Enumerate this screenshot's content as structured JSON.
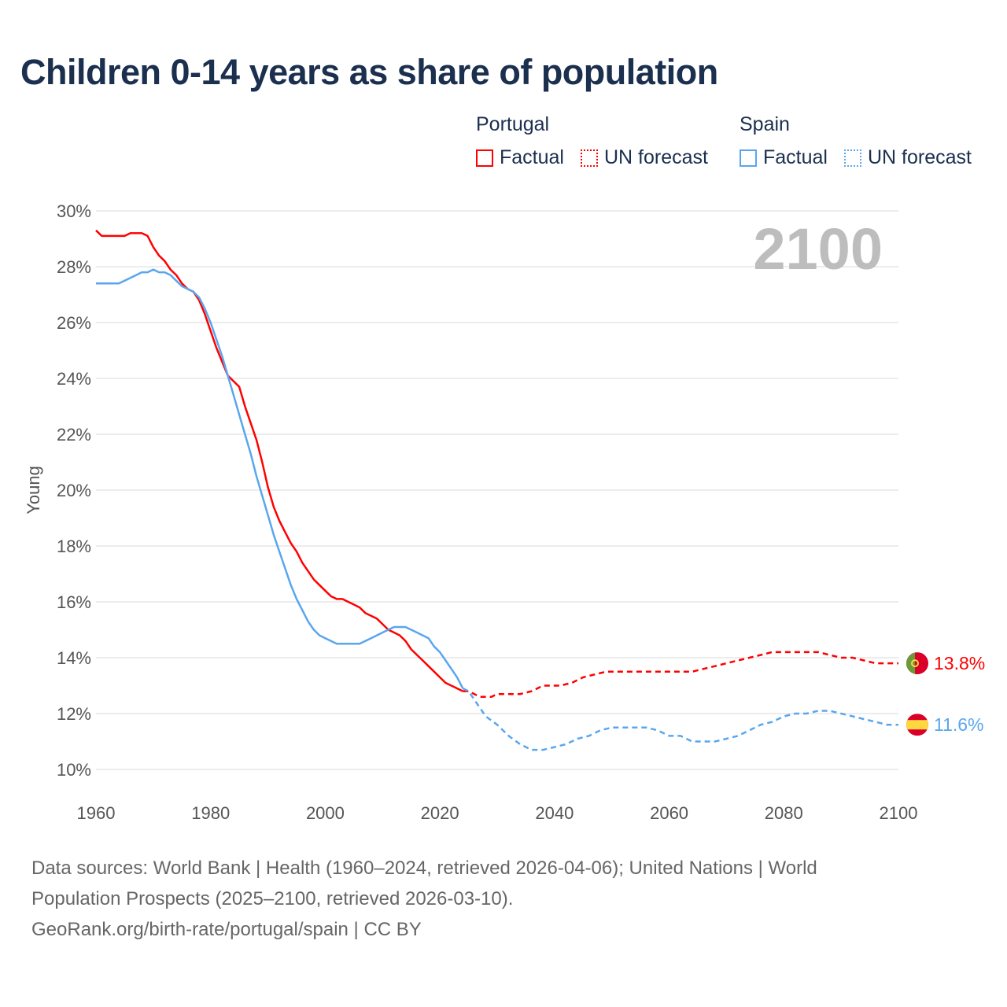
{
  "chart_data": {
    "type": "line",
    "title": "Children 0-14 years as share of population",
    "ylabel": "Young",
    "xlabel": "",
    "xlim": [
      1960,
      2100
    ],
    "ylim": [
      10,
      30
    ],
    "x_ticks": [
      "1960",
      "1980",
      "2000",
      "2020",
      "2040",
      "2060",
      "2080",
      "2100"
    ],
    "y_ticks": [
      "10%",
      "12%",
      "14%",
      "16%",
      "18%",
      "20%",
      "22%",
      "24%",
      "26%",
      "28%",
      "30%"
    ],
    "grid": true,
    "year_watermark": "2100",
    "legend": {
      "placement": "top-right",
      "groups": [
        {
          "country": "Portugal",
          "items": [
            "Factual",
            "UN forecast"
          ]
        },
        {
          "country": "Spain",
          "items": [
            "Factual",
            "UN forecast"
          ]
        }
      ]
    },
    "series": [
      {
        "name": "Portugal",
        "color": "#ff0000",
        "end_label": "13.8%",
        "factual": [
          [
            1960,
            29.3
          ],
          [
            1961,
            29.1
          ],
          [
            1965,
            29.1
          ],
          [
            1966,
            29.2
          ],
          [
            1968,
            29.2
          ],
          [
            1969,
            29.1
          ],
          [
            1970,
            28.7
          ],
          [
            1971,
            28.4
          ],
          [
            1972,
            28.2
          ],
          [
            1973,
            27.9
          ],
          [
            1974,
            27.7
          ],
          [
            1975,
            27.4
          ],
          [
            1976,
            27.2
          ],
          [
            1977,
            27.1
          ],
          [
            1978,
            26.8
          ],
          [
            1979,
            26.3
          ],
          [
            1980,
            25.7
          ],
          [
            1981,
            25.1
          ],
          [
            1982,
            24.6
          ],
          [
            1983,
            24.1
          ],
          [
            1985,
            23.7
          ],
          [
            1986,
            23.0
          ],
          [
            1987,
            22.4
          ],
          [
            1988,
            21.8
          ],
          [
            1989,
            21.0
          ],
          [
            1990,
            20.1
          ],
          [
            1991,
            19.4
          ],
          [
            1992,
            18.9
          ],
          [
            1993,
            18.5
          ],
          [
            1994,
            18.1
          ],
          [
            1995,
            17.8
          ],
          [
            1996,
            17.4
          ],
          [
            1997,
            17.1
          ],
          [
            1998,
            16.8
          ],
          [
            1999,
            16.6
          ],
          [
            2000,
            16.4
          ],
          [
            2001,
            16.2
          ],
          [
            2002,
            16.1
          ],
          [
            2003,
            16.1
          ],
          [
            2004,
            16.0
          ],
          [
            2005,
            15.9
          ],
          [
            2006,
            15.8
          ],
          [
            2007,
            15.6
          ],
          [
            2008,
            15.5
          ],
          [
            2009,
            15.4
          ],
          [
            2010,
            15.2
          ],
          [
            2011,
            15.0
          ],
          [
            2012,
            14.9
          ],
          [
            2013,
            14.8
          ],
          [
            2014,
            14.6
          ],
          [
            2015,
            14.3
          ],
          [
            2016,
            14.1
          ],
          [
            2017,
            13.9
          ],
          [
            2018,
            13.7
          ],
          [
            2019,
            13.5
          ],
          [
            2020,
            13.3
          ],
          [
            2021,
            13.1
          ],
          [
            2022,
            13.0
          ],
          [
            2023,
            12.9
          ],
          [
            2024,
            12.8
          ]
        ],
        "forecast": [
          [
            2024,
            12.8
          ],
          [
            2025,
            12.8
          ],
          [
            2026,
            12.7
          ],
          [
            2027,
            12.6
          ],
          [
            2029,
            12.6
          ],
          [
            2030,
            12.7
          ],
          [
            2034,
            12.7
          ],
          [
            2036,
            12.8
          ],
          [
            2038,
            13.0
          ],
          [
            2041,
            13.0
          ],
          [
            2043,
            13.1
          ],
          [
            2045,
            13.3
          ],
          [
            2047,
            13.4
          ],
          [
            2049,
            13.5
          ],
          [
            2064,
            13.5
          ],
          [
            2066,
            13.6
          ],
          [
            2068,
            13.7
          ],
          [
            2070,
            13.8
          ],
          [
            2072,
            13.9
          ],
          [
            2074,
            14.0
          ],
          [
            2076,
            14.1
          ],
          [
            2078,
            14.2
          ],
          [
            2086,
            14.2
          ],
          [
            2088,
            14.1
          ],
          [
            2090,
            14.0
          ],
          [
            2092,
            14.0
          ],
          [
            2094,
            13.9
          ],
          [
            2096,
            13.8
          ],
          [
            2100,
            13.8
          ]
        ]
      },
      {
        "name": "Spain",
        "color": "#5aa6ee",
        "end_label": "11.6%",
        "factual": [
          [
            1960,
            27.4
          ],
          [
            1964,
            27.4
          ],
          [
            1966,
            27.6
          ],
          [
            1968,
            27.8
          ],
          [
            1969,
            27.8
          ],
          [
            1970,
            27.9
          ],
          [
            1971,
            27.8
          ],
          [
            1972,
            27.8
          ],
          [
            1973,
            27.7
          ],
          [
            1974,
            27.5
          ],
          [
            1975,
            27.3
          ],
          [
            1976,
            27.2
          ],
          [
            1977,
            27.1
          ],
          [
            1978,
            26.9
          ],
          [
            1979,
            26.5
          ],
          [
            1980,
            26.0
          ],
          [
            1981,
            25.4
          ],
          [
            1982,
            24.8
          ],
          [
            1983,
            24.1
          ],
          [
            1984,
            23.4
          ],
          [
            1985,
            22.7
          ],
          [
            1986,
            22.0
          ],
          [
            1987,
            21.3
          ],
          [
            1988,
            20.5
          ],
          [
            1989,
            19.8
          ],
          [
            1990,
            19.1
          ],
          [
            1991,
            18.4
          ],
          [
            1992,
            17.8
          ],
          [
            1993,
            17.2
          ],
          [
            1994,
            16.6
          ],
          [
            1995,
            16.1
          ],
          [
            1996,
            15.7
          ],
          [
            1997,
            15.3
          ],
          [
            1998,
            15.0
          ],
          [
            1999,
            14.8
          ],
          [
            2000,
            14.7
          ],
          [
            2001,
            14.6
          ],
          [
            2002,
            14.5
          ],
          [
            2006,
            14.5
          ],
          [
            2007,
            14.6
          ],
          [
            2008,
            14.7
          ],
          [
            2010,
            14.9
          ],
          [
            2012,
            15.1
          ],
          [
            2014,
            15.1
          ],
          [
            2015,
            15.0
          ],
          [
            2016,
            14.9
          ],
          [
            2017,
            14.8
          ],
          [
            2018,
            14.7
          ],
          [
            2019,
            14.4
          ],
          [
            2020,
            14.2
          ],
          [
            2021,
            13.9
          ],
          [
            2022,
            13.6
          ],
          [
            2023,
            13.3
          ],
          [
            2024,
            12.9
          ]
        ],
        "forecast": [
          [
            2024,
            12.9
          ],
          [
            2025,
            12.8
          ],
          [
            2026,
            12.5
          ],
          [
            2027,
            12.2
          ],
          [
            2028,
            11.9
          ],
          [
            2030,
            11.6
          ],
          [
            2032,
            11.2
          ],
          [
            2034,
            10.9
          ],
          [
            2036,
            10.7
          ],
          [
            2038,
            10.7
          ],
          [
            2040,
            10.8
          ],
          [
            2042,
            10.9
          ],
          [
            2044,
            11.1
          ],
          [
            2046,
            11.2
          ],
          [
            2048,
            11.4
          ],
          [
            2050,
            11.5
          ],
          [
            2056,
            11.5
          ],
          [
            2058,
            11.4
          ],
          [
            2060,
            11.2
          ],
          [
            2062,
            11.2
          ],
          [
            2064,
            11.0
          ],
          [
            2068,
            11.0
          ],
          [
            2070,
            11.1
          ],
          [
            2072,
            11.2
          ],
          [
            2074,
            11.4
          ],
          [
            2076,
            11.6
          ],
          [
            2078,
            11.7
          ],
          [
            2080,
            11.9
          ],
          [
            2082,
            12.0
          ],
          [
            2084,
            12.0
          ],
          [
            2086,
            12.1
          ],
          [
            2088,
            12.1
          ],
          [
            2090,
            12.0
          ],
          [
            2092,
            11.9
          ],
          [
            2094,
            11.8
          ],
          [
            2096,
            11.7
          ],
          [
            2098,
            11.6
          ],
          [
            2100,
            11.6
          ]
        ]
      }
    ]
  },
  "footer": {
    "line1": "Data sources: World Bank | Health (1960–2024, retrieved 2026-04-06); United Nations | World",
    "line2": "Population Prospects (2025–2100, retrieved 2026-03-10).",
    "line3": "GeoRank.org/birth-rate/portugal/spain | CC BY"
  }
}
